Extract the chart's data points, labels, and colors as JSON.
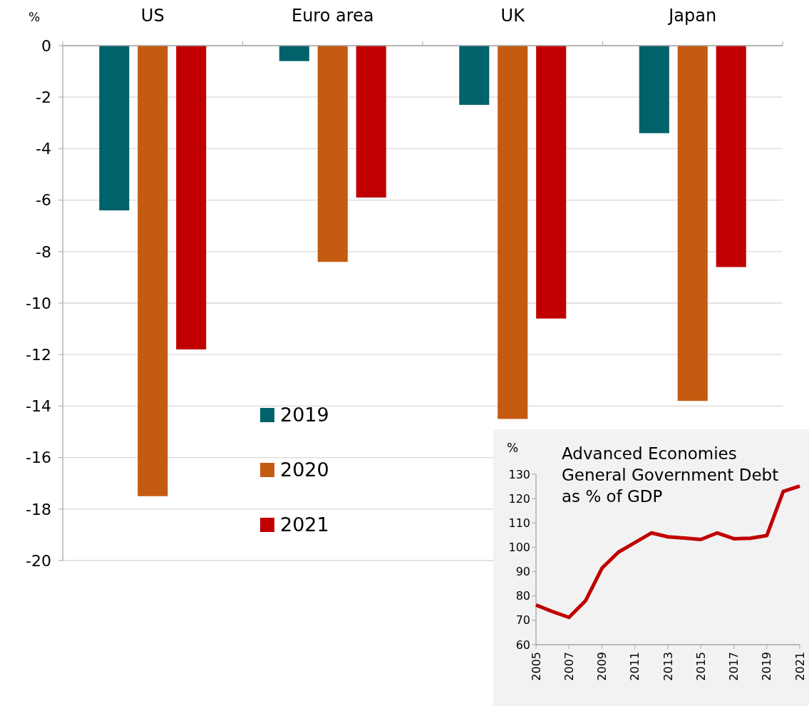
{
  "chart_data": [
    {
      "type": "bar",
      "ylabel": "%",
      "categories": [
        "US",
        "Euro area",
        "UK",
        "Japan"
      ],
      "series": [
        {
          "name": "2019",
          "color": "#00626b",
          "values": [
            -6.4,
            -0.6,
            -2.3,
            -3.4
          ]
        },
        {
          "name": "2020",
          "color": "#c55a11",
          "values": [
            -17.5,
            -8.4,
            -14.5,
            -13.8
          ]
        },
        {
          "name": "2021",
          "color": "#c00000",
          "values": [
            -11.8,
            -5.9,
            -10.6,
            -8.6
          ]
        }
      ],
      "ylim": [
        -20,
        0
      ],
      "yticks": [
        -20,
        -18,
        -16,
        -14,
        -12,
        -10,
        -8,
        -6,
        -4,
        -2,
        0
      ],
      "grid": "y",
      "legend": "bottom left"
    },
    {
      "type": "line",
      "title": "Advanced Economies\nGeneral Government Debt\nas % of GDP",
      "ylabel": "%",
      "x": [
        2005,
        2006,
        2007,
        2008,
        2009,
        2010,
        2011,
        2012,
        2013,
        2014,
        2015,
        2016,
        2017,
        2018,
        2019,
        2020,
        2021
      ],
      "series": [
        {
          "color": "#c00000",
          "values": [
            76.3,
            73.6,
            71.2,
            78.0,
            91.4,
            98.0,
            101.9,
            105.9,
            104.3,
            103.8,
            103.2,
            105.9,
            103.5,
            103.7,
            104.8,
            122.9,
            125.1
          ]
        }
      ],
      "xlim": [
        2005,
        2021
      ],
      "xticks": [
        2005,
        2007,
        2009,
        2011,
        2013,
        2015,
        2017,
        2019,
        2021
      ],
      "ylim": [
        60,
        130
      ],
      "yticks": [
        60,
        70,
        80,
        90,
        100,
        110,
        120,
        130
      ],
      "grid": false,
      "marker": "none",
      "line_style": "solid"
    }
  ]
}
